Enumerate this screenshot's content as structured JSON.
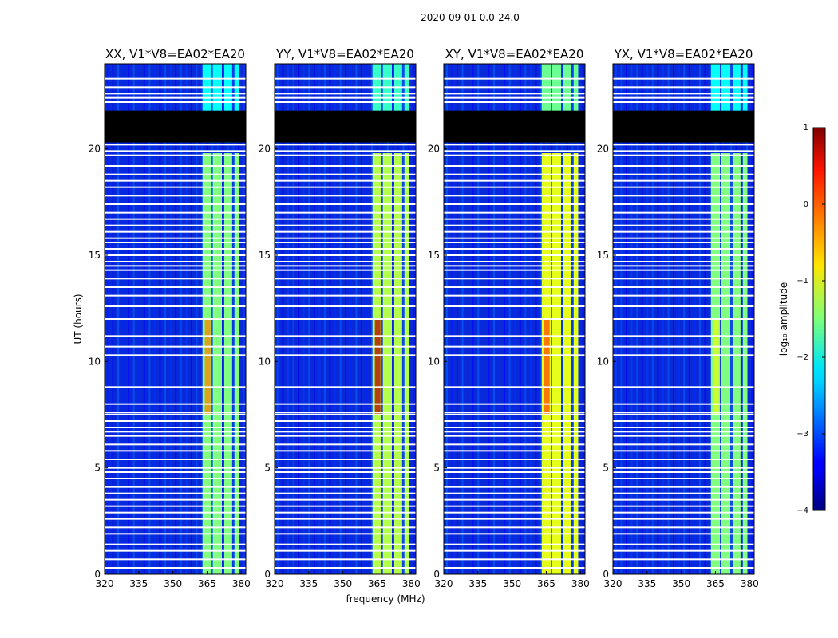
{
  "figure": {
    "suptitle": "2020-09-01 0.0-24.0",
    "ylabel": "UT (hours)",
    "xlabel": "frequency (MHz)"
  },
  "chart_data": {
    "type": "heatmap",
    "x_range_mhz": [
      320,
      382
    ],
    "y_range_hours": [
      0,
      24
    ],
    "x_ticks": [
      320,
      335,
      350,
      365,
      380
    ],
    "y_ticks": [
      0,
      5,
      10,
      15,
      20
    ],
    "x_tick_labels": [
      "320",
      "335",
      "350",
      "365",
      "380"
    ],
    "y_tick_labels": [
      "0",
      "5",
      "10",
      "15",
      "20"
    ],
    "panels": [
      {
        "title": "XX, V1*V8=EA02*EA20",
        "band_level": 0.5,
        "hot_level": 0.75
      },
      {
        "title": "YY, V1*V8=EA02*EA20",
        "band_level": 0.55,
        "hot_level": 0.95
      },
      {
        "title": "XY, V1*V8=EA02*EA20",
        "band_level": 0.6,
        "hot_level": 0.8
      },
      {
        "title": "YX, V1*V8=EA02*EA20",
        "band_level": 0.5,
        "hot_level": 0.6
      }
    ],
    "bright_band_mhz": [
      363,
      379
    ],
    "bright_channels_mhz": [
      [
        363,
        367
      ],
      [
        367.5,
        371.5
      ],
      [
        372.5,
        376
      ],
      [
        377,
        379
      ]
    ],
    "flagged_gap_hours": [
      20.3,
      21.8
    ],
    "hot_region_hours": [
      7.5,
      12
    ],
    "flag_lines_hours": [
      0.3,
      0.7,
      1.1,
      1.4,
      1.9,
      2.2,
      2.6,
      2.9,
      3.2,
      3.5,
      3.8,
      4.1,
      4.5,
      4.8,
      5.0,
      5.4,
      5.8,
      6.1,
      6.5,
      6.7,
      6.9,
      7.2,
      7.5,
      7.6,
      8.0,
      8.8,
      10.3,
      10.7,
      11.2,
      12.0,
      12.6,
      13.1,
      13.5,
      13.9,
      14.3,
      14.5,
      14.7,
      15.0,
      15.3,
      15.6,
      15.8,
      16.1,
      16.4,
      16.7,
      17.0,
      17.4,
      17.8,
      18.2,
      18.5,
      18.8,
      19.2,
      19.7,
      19.9,
      20.2,
      22.2,
      22.4,
      22.6,
      22.9,
      23.3
    ],
    "colorbar": {
      "label": "log₁₀ amplitude",
      "min": -4,
      "max": 1,
      "ticks": [
        1,
        0,
        -1,
        -2,
        -3,
        -4
      ],
      "tick_labels": [
        "1",
        "0",
        "−1",
        "−2",
        "−3",
        "−4"
      ],
      "colormap": "jet"
    }
  }
}
